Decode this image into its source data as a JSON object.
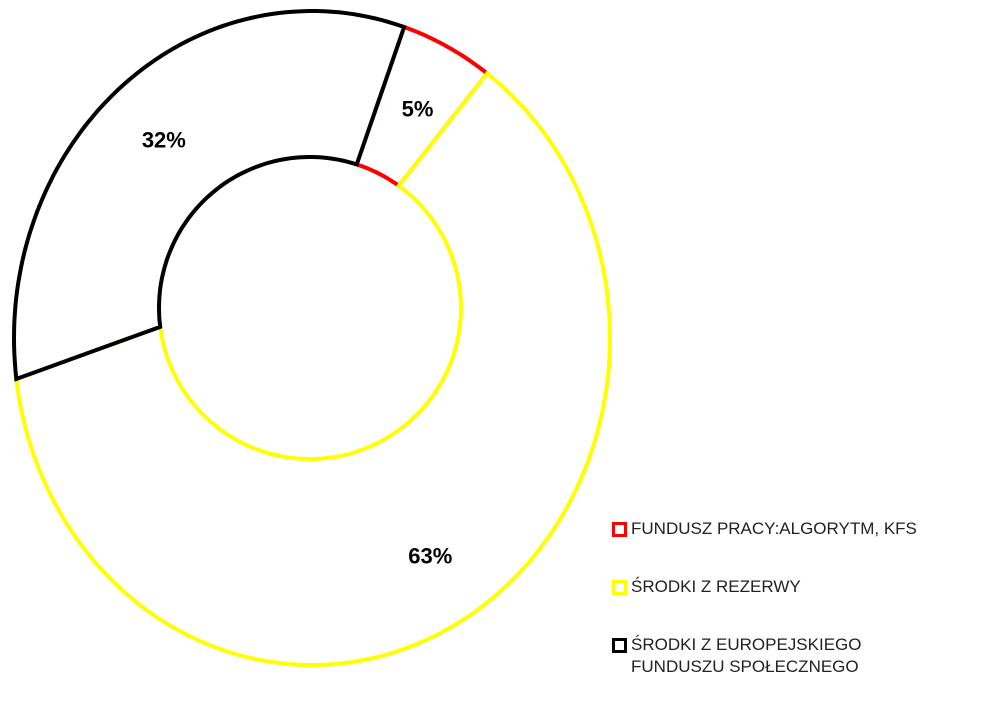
{
  "chart_data": {
    "type": "donut",
    "categories": [
      "FUNDUSZ PRACY:ALGORYTM, KFS",
      "ŚRODKI Z REZERWY",
      "ŚRODKI Z EUROPEJSKIEGO FUNDUSZU SPOŁECZNEGO"
    ],
    "values": [
      5,
      63,
      32
    ],
    "value_labels": [
      "5%",
      "63%",
      "32%"
    ],
    "colors": [
      "#ff0000",
      "#ffff00",
      "#000000"
    ],
    "legend": "right"
  }
}
